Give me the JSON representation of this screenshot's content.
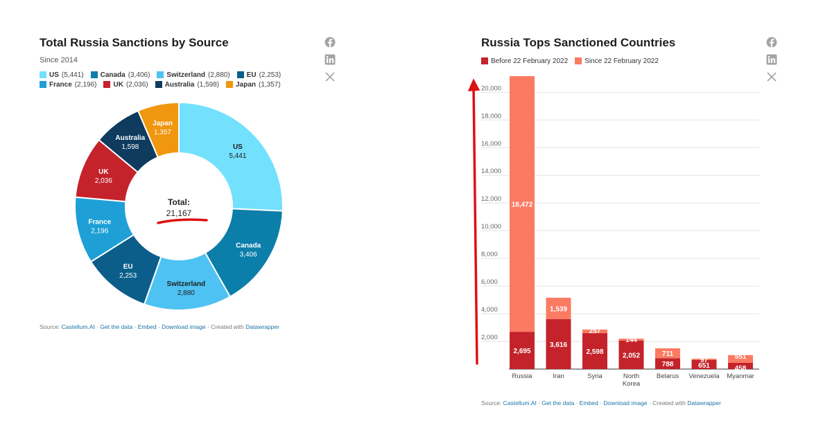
{
  "left": {
    "title": "Total Russia Sanctions by Source",
    "subtitle": "Since 2014",
    "footer": {
      "source_label": "Source: ",
      "source": "Castellum.AI",
      "sep": " · ",
      "get_data": "Get the data",
      "embed": "Embed",
      "download": "Download image",
      "created": "Created with ",
      "datawrapper": "Datawrapper"
    }
  },
  "right": {
    "title": "Russia Tops Sanctioned Countries",
    "footer": {
      "source_label": "Source: ",
      "source": "Castellum.AI",
      "sep": " · ",
      "get_data": "Get the data",
      "embed": "Embed",
      "download": "Download image",
      "created": "Created with ",
      "datawrapper": "Datawrapper"
    }
  },
  "social_icons": [
    "facebook-icon",
    "linkedin-icon",
    "x-icon"
  ],
  "chart_data": [
    {
      "type": "pie",
      "title": "Total Russia Sanctions by Source",
      "subtitle": "Since 2014",
      "center_label": "Total:",
      "center_value": "21,167",
      "categories": [
        "US",
        "Canada",
        "Switzerland",
        "EU",
        "France",
        "UK",
        "Australia",
        "Japan"
      ],
      "values": [
        5441,
        3406,
        2880,
        2253,
        2196,
        2036,
        1598,
        1357
      ],
      "labels": [
        "5,441",
        "3,406",
        "2,880",
        "2,253",
        "2,196",
        "2,036",
        "1,598",
        "1,357"
      ],
      "legend_labels": [
        "(5,441)",
        "(3,406)",
        "(2,880)",
        "(2,253)",
        "(2,196)",
        "(2,036)",
        "(1,598)",
        "(1,357)"
      ],
      "colors": [
        "#73e0fe",
        "#0b7eaa",
        "#4ec2f2",
        "#0b5e8a",
        "#1ea0d7",
        "#c4232b",
        "#0e3b5e",
        "#f0960f"
      ],
      "label_colors": [
        "#1d1d1d",
        "#ffffff",
        "#1d1d1d",
        "#ffffff",
        "#ffffff",
        "#ffffff",
        "#ffffff",
        "#ffffff"
      ],
      "legend_placement": "top",
      "annotation_color": "#dd1111"
    },
    {
      "type": "bar",
      "stacked": true,
      "title": "Russia Tops Sanctioned Countries",
      "categories": [
        "Russia",
        "Iran",
        "Syria",
        "North Korea",
        "Belarus",
        "Venezuela",
        "Myanmar"
      ],
      "category_lines": [
        [
          "Russia"
        ],
        [
          "Iran"
        ],
        [
          "Syria"
        ],
        [
          "North",
          "Korea"
        ],
        [
          "Belarus"
        ],
        [
          "Venezuela"
        ],
        [
          "Myanmar"
        ]
      ],
      "series": [
        {
          "name": "Before 22 February 2022",
          "values": [
            2695,
            3616,
            2598,
            2052,
            788,
            651,
            458
          ],
          "labels": [
            "2,695",
            "3,616",
            "2,598",
            "2,052",
            "788",
            "651",
            "458"
          ],
          "color": "#c4232b"
        },
        {
          "name": "Since 22 February 2022",
          "values": [
            18472,
            1539,
            257,
            144,
            711,
            97,
            551
          ],
          "labels": [
            "18,472",
            "1,539",
            "257",
            "144",
            "711",
            "97",
            "551"
          ],
          "color": "#fa7b62"
        }
      ],
      "ylim": [
        0,
        21167
      ],
      "yticks": [
        2000,
        4000,
        6000,
        8000,
        10000,
        12000,
        14000,
        16000,
        18000,
        20000
      ],
      "ytick_labels": [
        "2,000",
        "4,000",
        "6,000",
        "8,000",
        "10,000",
        "12,000",
        "14,000",
        "16,000",
        "18,000",
        "20,000"
      ],
      "grid": true,
      "legend_placement": "top-left",
      "annotation_color": "#dd1111"
    }
  ]
}
